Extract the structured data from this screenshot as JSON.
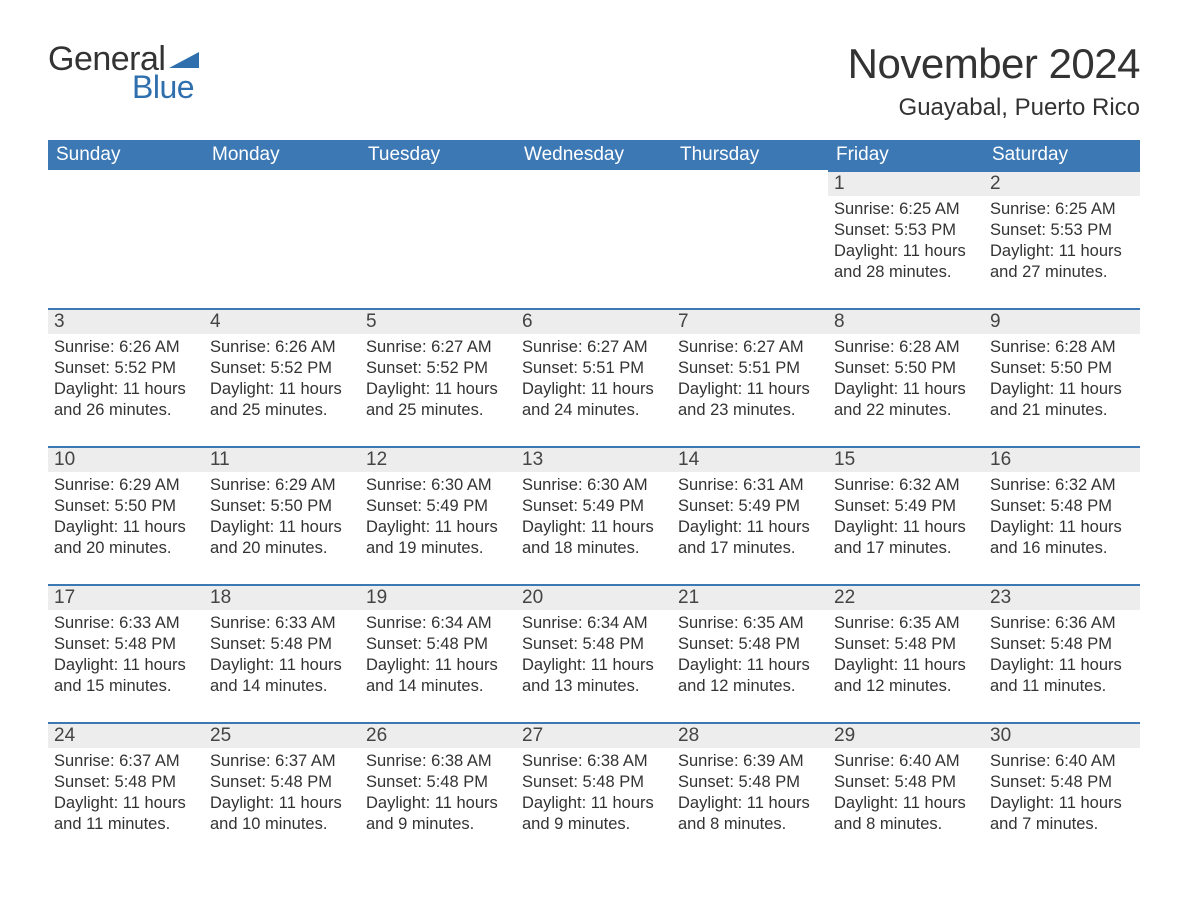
{
  "colors": {
    "header_bg": "#3c78b4",
    "header_text": "#ffffff",
    "daynum_bg": "#ededed",
    "border_top": "#3c78b4",
    "body_text": "#333333",
    "logo_blue": "#2f6fad",
    "background": "#ffffff"
  },
  "typography": {
    "title_fontsize": 42,
    "location_fontsize": 24,
    "header_fontsize": 19,
    "daynum_fontsize": 19,
    "daytext_fontsize": 16.5,
    "font_family": "Segoe UI"
  },
  "logo": {
    "text1": "General",
    "text2": "Blue"
  },
  "title": "November 2024",
  "location": "Guayabal, Puerto Rico",
  "weekdays": [
    "Sunday",
    "Monday",
    "Tuesday",
    "Wednesday",
    "Thursday",
    "Friday",
    "Saturday"
  ],
  "calendar": {
    "columns": 7,
    "rows": 5,
    "first_day_column": 5,
    "days": [
      {
        "n": 1,
        "sunrise": "6:25 AM",
        "sunset": "5:53 PM",
        "daylight": "11 hours and 28 minutes."
      },
      {
        "n": 2,
        "sunrise": "6:25 AM",
        "sunset": "5:53 PM",
        "daylight": "11 hours and 27 minutes."
      },
      {
        "n": 3,
        "sunrise": "6:26 AM",
        "sunset": "5:52 PM",
        "daylight": "11 hours and 26 minutes."
      },
      {
        "n": 4,
        "sunrise": "6:26 AM",
        "sunset": "5:52 PM",
        "daylight": "11 hours and 25 minutes."
      },
      {
        "n": 5,
        "sunrise": "6:27 AM",
        "sunset": "5:52 PM",
        "daylight": "11 hours and 25 minutes."
      },
      {
        "n": 6,
        "sunrise": "6:27 AM",
        "sunset": "5:51 PM",
        "daylight": "11 hours and 24 minutes."
      },
      {
        "n": 7,
        "sunrise": "6:27 AM",
        "sunset": "5:51 PM",
        "daylight": "11 hours and 23 minutes."
      },
      {
        "n": 8,
        "sunrise": "6:28 AM",
        "sunset": "5:50 PM",
        "daylight": "11 hours and 22 minutes."
      },
      {
        "n": 9,
        "sunrise": "6:28 AM",
        "sunset": "5:50 PM",
        "daylight": "11 hours and 21 minutes."
      },
      {
        "n": 10,
        "sunrise": "6:29 AM",
        "sunset": "5:50 PM",
        "daylight": "11 hours and 20 minutes."
      },
      {
        "n": 11,
        "sunrise": "6:29 AM",
        "sunset": "5:50 PM",
        "daylight": "11 hours and 20 minutes."
      },
      {
        "n": 12,
        "sunrise": "6:30 AM",
        "sunset": "5:49 PM",
        "daylight": "11 hours and 19 minutes."
      },
      {
        "n": 13,
        "sunrise": "6:30 AM",
        "sunset": "5:49 PM",
        "daylight": "11 hours and 18 minutes."
      },
      {
        "n": 14,
        "sunrise": "6:31 AM",
        "sunset": "5:49 PM",
        "daylight": "11 hours and 17 minutes."
      },
      {
        "n": 15,
        "sunrise": "6:32 AM",
        "sunset": "5:49 PM",
        "daylight": "11 hours and 17 minutes."
      },
      {
        "n": 16,
        "sunrise": "6:32 AM",
        "sunset": "5:48 PM",
        "daylight": "11 hours and 16 minutes."
      },
      {
        "n": 17,
        "sunrise": "6:33 AM",
        "sunset": "5:48 PM",
        "daylight": "11 hours and 15 minutes."
      },
      {
        "n": 18,
        "sunrise": "6:33 AM",
        "sunset": "5:48 PM",
        "daylight": "11 hours and 14 minutes."
      },
      {
        "n": 19,
        "sunrise": "6:34 AM",
        "sunset": "5:48 PM",
        "daylight": "11 hours and 14 minutes."
      },
      {
        "n": 20,
        "sunrise": "6:34 AM",
        "sunset": "5:48 PM",
        "daylight": "11 hours and 13 minutes."
      },
      {
        "n": 21,
        "sunrise": "6:35 AM",
        "sunset": "5:48 PM",
        "daylight": "11 hours and 12 minutes."
      },
      {
        "n": 22,
        "sunrise": "6:35 AM",
        "sunset": "5:48 PM",
        "daylight": "11 hours and 12 minutes."
      },
      {
        "n": 23,
        "sunrise": "6:36 AM",
        "sunset": "5:48 PM",
        "daylight": "11 hours and 11 minutes."
      },
      {
        "n": 24,
        "sunrise": "6:37 AM",
        "sunset": "5:48 PM",
        "daylight": "11 hours and 11 minutes."
      },
      {
        "n": 25,
        "sunrise": "6:37 AM",
        "sunset": "5:48 PM",
        "daylight": "11 hours and 10 minutes."
      },
      {
        "n": 26,
        "sunrise": "6:38 AM",
        "sunset": "5:48 PM",
        "daylight": "11 hours and 9 minutes."
      },
      {
        "n": 27,
        "sunrise": "6:38 AM",
        "sunset": "5:48 PM",
        "daylight": "11 hours and 9 minutes."
      },
      {
        "n": 28,
        "sunrise": "6:39 AM",
        "sunset": "5:48 PM",
        "daylight": "11 hours and 8 minutes."
      },
      {
        "n": 29,
        "sunrise": "6:40 AM",
        "sunset": "5:48 PM",
        "daylight": "11 hours and 8 minutes."
      },
      {
        "n": 30,
        "sunrise": "6:40 AM",
        "sunset": "5:48 PM",
        "daylight": "11 hours and 7 minutes."
      }
    ],
    "labels": {
      "sunrise": "Sunrise:",
      "sunset": "Sunset:",
      "daylight": "Daylight:"
    }
  }
}
